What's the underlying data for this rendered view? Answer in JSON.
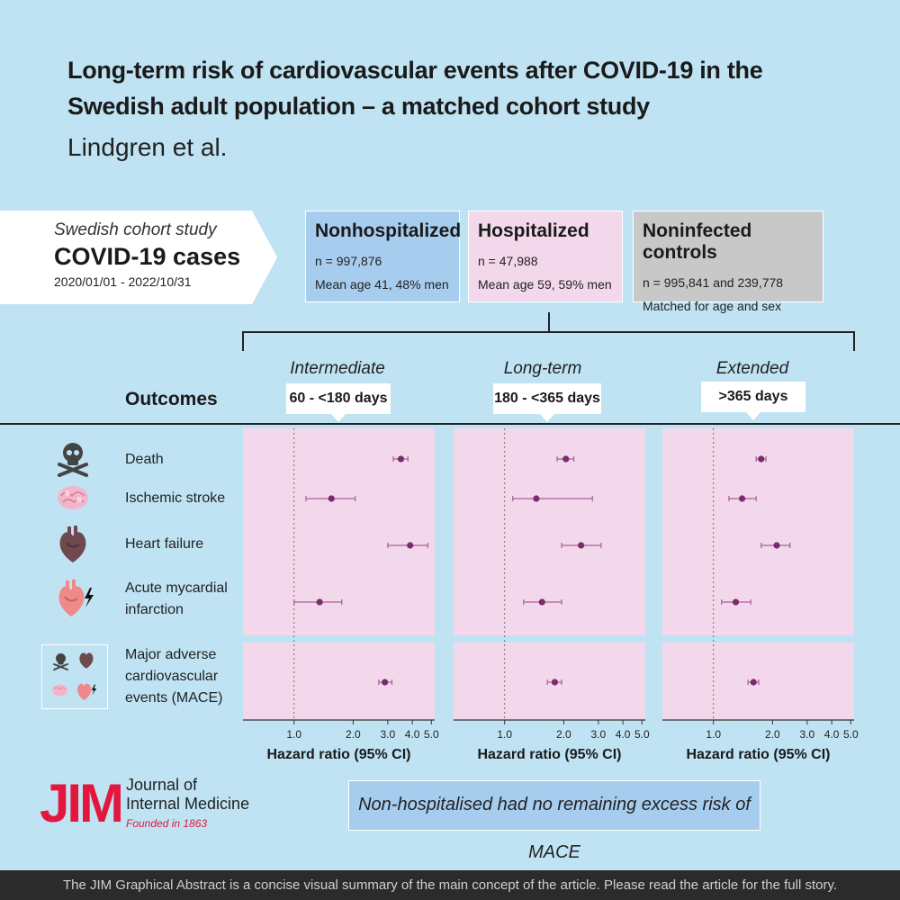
{
  "header": {
    "title_line1": "Long-term risk of cardiovascular events after COVID-19 in the",
    "title_line2": "Swedish adult population – a matched cohort study",
    "authors": "Lindgren et al."
  },
  "cohort": {
    "study": "Swedish cohort study",
    "cases": "COVID-19 cases",
    "dates": "2020/01/01 - 2022/10/31"
  },
  "groups": [
    {
      "name": "Nonhospitalized",
      "line1": "n = 997,876",
      "line2": "Mean age 41, 48% men",
      "color": "#a7cdee"
    },
    {
      "name": "Hospitalized",
      "line1": "n = 47,988",
      "line2": "Mean age 59, 59% men",
      "color": "#f2d8ea"
    },
    {
      "name": "Noninfected controls",
      "line1": "n = 995,841 and 239,778",
      "line2": "Matched for age and sex",
      "color": "#c8c8c8"
    }
  ],
  "outcomes_header": "Outcomes",
  "outcomes": [
    {
      "label_line1": "Death",
      "label_line2": "",
      "icon": "skull-crossbones-icon"
    },
    {
      "label_line1": "Ischemic stroke",
      "label_line2": "",
      "icon": "brain-icon"
    },
    {
      "label_line1": "Heart failure",
      "label_line2": "",
      "icon": "heart-icon"
    },
    {
      "label_line1": "Acute mycardial",
      "label_line2": "infarction",
      "icon": "heart-lightning-icon"
    },
    {
      "label_line1": "Major adverse",
      "label_line2": "cardiovascular",
      "label_line3": "events (MACE)",
      "icon": "mace-composite-icon"
    }
  ],
  "periods": [
    {
      "name": "Intermediate",
      "range": "60 - <180 days"
    },
    {
      "name": "Long-term",
      "range": "180 - <365 days"
    },
    {
      "name": "Extended",
      "range": ">365 days"
    }
  ],
  "chart_data": {
    "type": "forest",
    "xlabel": "Hazard ratio (95% CI)",
    "xscale": "log",
    "xlim": [
      0.55,
      5.2
    ],
    "ticks": [
      1.0,
      2.0,
      3.0,
      4.0,
      5.0
    ],
    "tick_labels": [
      "1.0",
      "2.0",
      "3.0",
      "4.0",
      "5.0"
    ],
    "reference_line": 1.0,
    "outcomes": [
      "Death",
      "Ischemic stroke",
      "Heart failure",
      "Acute mycardial infarction",
      "Major adverse cardiovascular events (MACE)"
    ],
    "panels": [
      {
        "period": "Intermediate",
        "hr": [
          3.5,
          1.55,
          3.9,
          1.35,
          2.9
        ],
        "lower": [
          3.2,
          1.15,
          3.0,
          1.0,
          2.7
        ],
        "upper": [
          3.8,
          2.05,
          4.8,
          1.75,
          3.15
        ]
      },
      {
        "period": "Long-term",
        "hr": [
          2.05,
          1.45,
          2.45,
          1.55,
          1.8
        ],
        "lower": [
          1.85,
          1.1,
          1.95,
          1.25,
          1.65
        ],
        "upper": [
          2.25,
          2.8,
          3.1,
          1.95,
          1.95
        ]
      },
      {
        "period": "Extended",
        "hr": [
          1.75,
          1.4,
          2.1,
          1.3,
          1.6
        ],
        "lower": [
          1.65,
          1.2,
          1.75,
          1.1,
          1.5
        ],
        "upper": [
          1.85,
          1.65,
          2.45,
          1.55,
          1.7
        ]
      }
    ],
    "point_color": "#7a2a6e"
  },
  "journal": {
    "logo": "JIM",
    "name_line1": "Journal of",
    "name_line2": "Internal Medicine",
    "founded": "Founded in 1863"
  },
  "note": "Non-hospitalised had no remaining excess risk of MACE",
  "footer": "The JIM Graphical Abstract is a concise visual summary of the main concept of the article. Please read the article for the full story."
}
